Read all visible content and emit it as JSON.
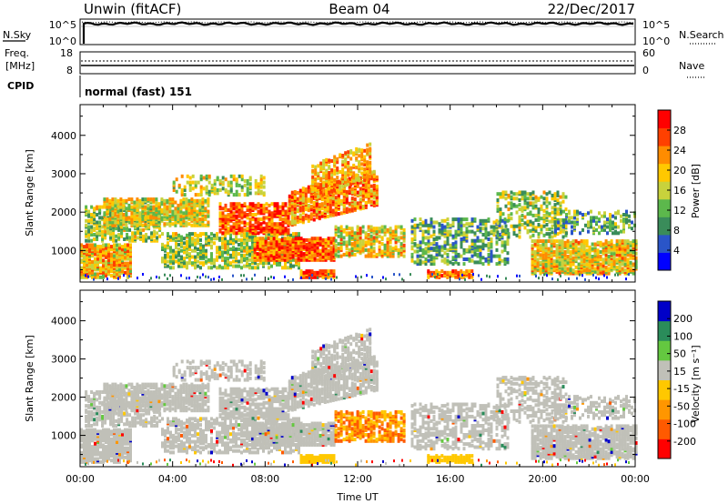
{
  "header": {
    "radar": "Unwin (fitACF)",
    "beam": "Beam 04",
    "date": "22/Dec/2017"
  },
  "noise_panel": {
    "left_label": "N.Sky",
    "right_label": "N.Search",
    "ticks_left": [
      "10^5",
      "10^0"
    ],
    "ticks_right": [
      "10^5",
      "10^0"
    ]
  },
  "freq_panel": {
    "left_label_line1": "Freq.",
    "left_label_line2": "[MHz]",
    "right_label": "Nave",
    "ticks_left": [
      "18",
      "8"
    ],
    "ticks_right": [
      "60",
      "0"
    ]
  },
  "cpid": {
    "label": "CPID",
    "value": "normal (fast) 151"
  },
  "colors": {
    "power_scale": [
      "#0000ff",
      "#2a55c8",
      "#3a8c5a",
      "#5cb84c",
      "#c8d23c",
      "#ffc800",
      "#ff8c00",
      "#ff4000",
      "#ff0000"
    ],
    "velocity_scale": [
      "#ff0000",
      "#ff5a00",
      "#ff9600",
      "#ffc800",
      "#c0c0b8",
      "#64c840",
      "#2a8c5a",
      "#0000c8"
    ],
    "ground_scatter": "#c0c0b8"
  },
  "chart_data": [
    {
      "type": "heatmap",
      "name": "Power",
      "xlabel": "",
      "ylabel": "Slant Range [km]",
      "x_ticks": [
        "00:00",
        "04:00",
        "08:00",
        "12:00",
        "16:00",
        "20:00",
        "00:00"
      ],
      "y_ticks": [
        "1000",
        "2000",
        "3000",
        "4000"
      ],
      "ylim": [
        180,
        4800
      ],
      "colorbar_label": "Power [dB]",
      "colorbar_ticks": [
        "4",
        "8",
        "12",
        "16",
        "20",
        "24",
        "28"
      ],
      "colorbar_range": [
        0,
        30
      ]
    },
    {
      "type": "heatmap",
      "name": "Velocity",
      "xlabel": "Time UT",
      "ylabel": "Slant Range [km]",
      "x_ticks": [
        "00:00",
        "04:00",
        "08:00",
        "12:00",
        "16:00",
        "20:00",
        "00:00"
      ],
      "y_ticks": [
        "1000",
        "2000",
        "3000",
        "4000"
      ],
      "ylim": [
        180,
        4800
      ],
      "colorbar_label": "Velocity [m s⁻¹]",
      "colorbar_ticks": [
        "200",
        "100",
        "50",
        "15",
        "-15",
        "-50",
        "-100",
        "-200"
      ],
      "colorbar_range": [
        -250,
        250
      ]
    }
  ]
}
